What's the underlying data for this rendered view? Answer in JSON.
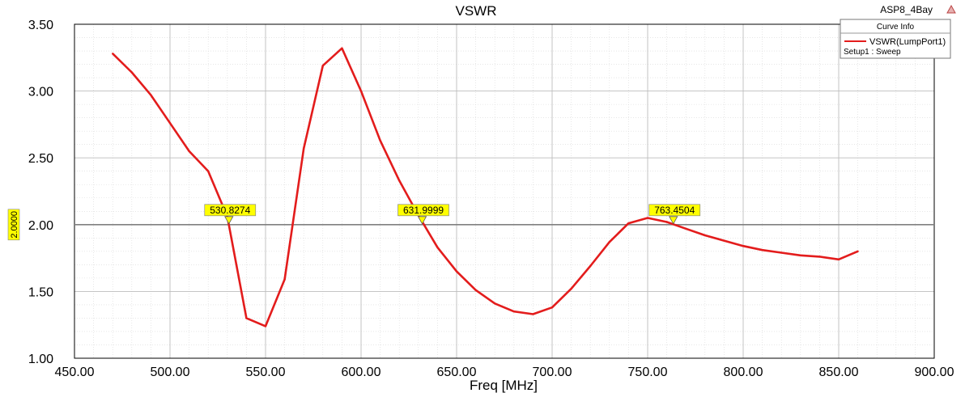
{
  "chart_data": {
    "type": "line",
    "title": "VSWR",
    "design_name": "ASP8_4Bay",
    "xlabel": "Freq [MHz]",
    "ylabel": "",
    "xlim": [
      450,
      900
    ],
    "ylim": [
      1.0,
      3.5
    ],
    "x_ticks": [
      "450.00",
      "500.00",
      "550.00",
      "600.00",
      "650.00",
      "700.00",
      "750.00",
      "800.00",
      "850.00",
      "900.00"
    ],
    "y_ticks": [
      "1.00",
      "1.50",
      "2.00",
      "2.50",
      "3.00",
      "3.50"
    ],
    "grid": true,
    "legend": {
      "header": "Curve Info",
      "entries": [
        {
          "name": "VSWR(LumpPort1)",
          "sub": "Setup1 : Sweep"
        }
      ],
      "position": "top-right"
    },
    "series": [
      {
        "name": "VSWR(LumpPort1)",
        "color": "#e31c1c",
        "x": [
          470,
          480,
          490,
          500,
          510,
          520,
          530,
          540,
          550,
          560,
          570,
          580,
          590,
          600,
          610,
          620,
          630,
          640,
          650,
          660,
          670,
          680,
          690,
          700,
          710,
          720,
          730,
          740,
          750,
          760,
          770,
          780,
          790,
          800,
          810,
          820,
          830,
          840,
          850,
          860
        ],
        "y": [
          3.28,
          3.14,
          2.97,
          2.76,
          2.55,
          2.4,
          2.06,
          1.3,
          1.24,
          1.59,
          2.57,
          3.19,
          3.32,
          3.0,
          2.63,
          2.33,
          2.07,
          1.83,
          1.65,
          1.51,
          1.41,
          1.35,
          1.33,
          1.38,
          1.52,
          1.69,
          1.87,
          2.01,
          2.05,
          2.02,
          1.97,
          1.92,
          1.88,
          1.84,
          1.81,
          1.79,
          1.77,
          1.76,
          1.74,
          1.8
        ]
      }
    ],
    "reference_line": {
      "y": 2.0,
      "label": "2.0000",
      "color": "#808080"
    },
    "markers": [
      {
        "label": "530.8274",
        "x": 530.8274,
        "y": 2.0
      },
      {
        "label": "631.9999",
        "x": 631.9999,
        "y": 2.0
      },
      {
        "label": "763.4504",
        "x": 763.4504,
        "y": 2.0
      }
    ],
    "marker_color": "#ffff00",
    "grid_color": "#d8d8d8"
  }
}
